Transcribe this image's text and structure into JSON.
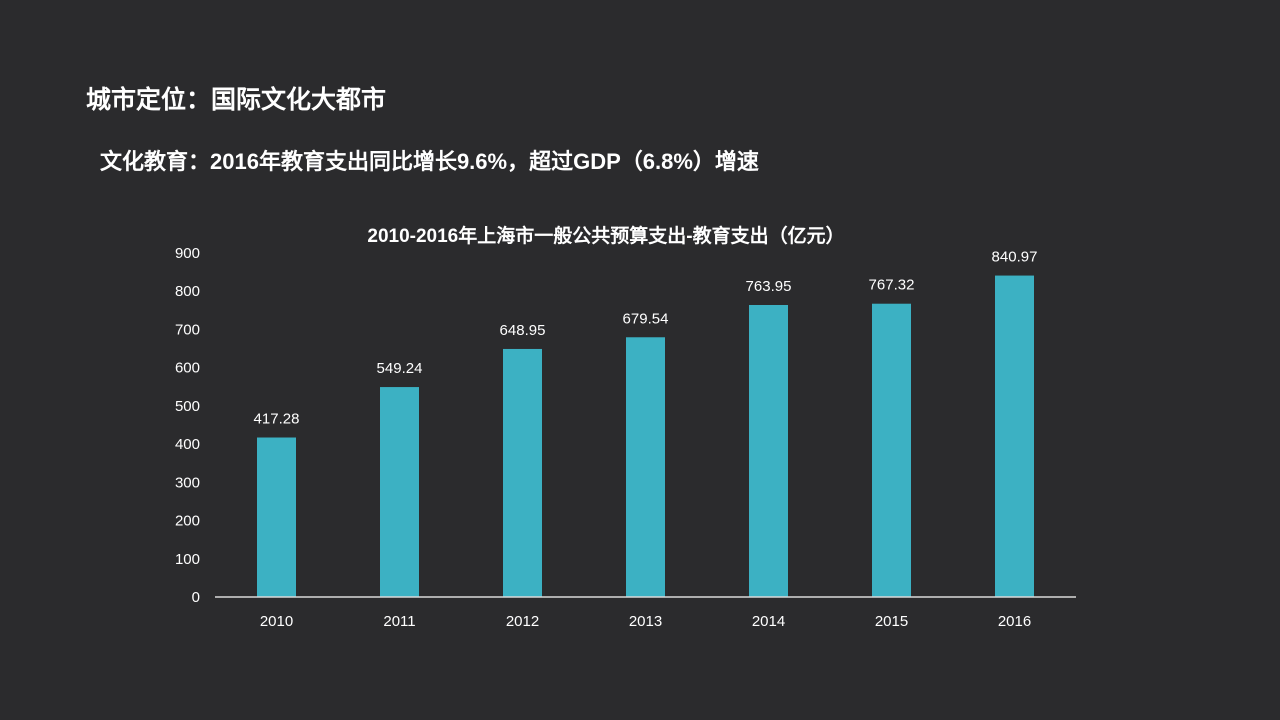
{
  "slide": {
    "title": "城市定位：国际文化大都市",
    "subtitle": "文化教育：2016年教育支出同比增长9.6%，超过GDP（6.8%）增速"
  },
  "colors": {
    "background": "#2b2b2d",
    "bar": "#3cb1c3",
    "text": "#ffffff",
    "axis": "#d9d9d9"
  },
  "chart_data": {
    "type": "bar",
    "title": "2010-2016年上海市一般公共预算支出-教育支出（亿元）",
    "categories": [
      "2010",
      "2011",
      "2012",
      "2013",
      "2014",
      "2015",
      "2016"
    ],
    "values": [
      417.28,
      549.24,
      648.95,
      679.54,
      763.95,
      767.32,
      840.97
    ],
    "value_labels": [
      "417.28",
      "549.24",
      "648.95",
      "679.54",
      "763.95",
      "767.32",
      "840.97"
    ],
    "xlabel": "",
    "ylabel": "",
    "ylim": [
      0,
      900
    ],
    "yticks": [
      0,
      100,
      200,
      300,
      400,
      500,
      600,
      700,
      800,
      900
    ],
    "grid": false,
    "legend": "none"
  }
}
